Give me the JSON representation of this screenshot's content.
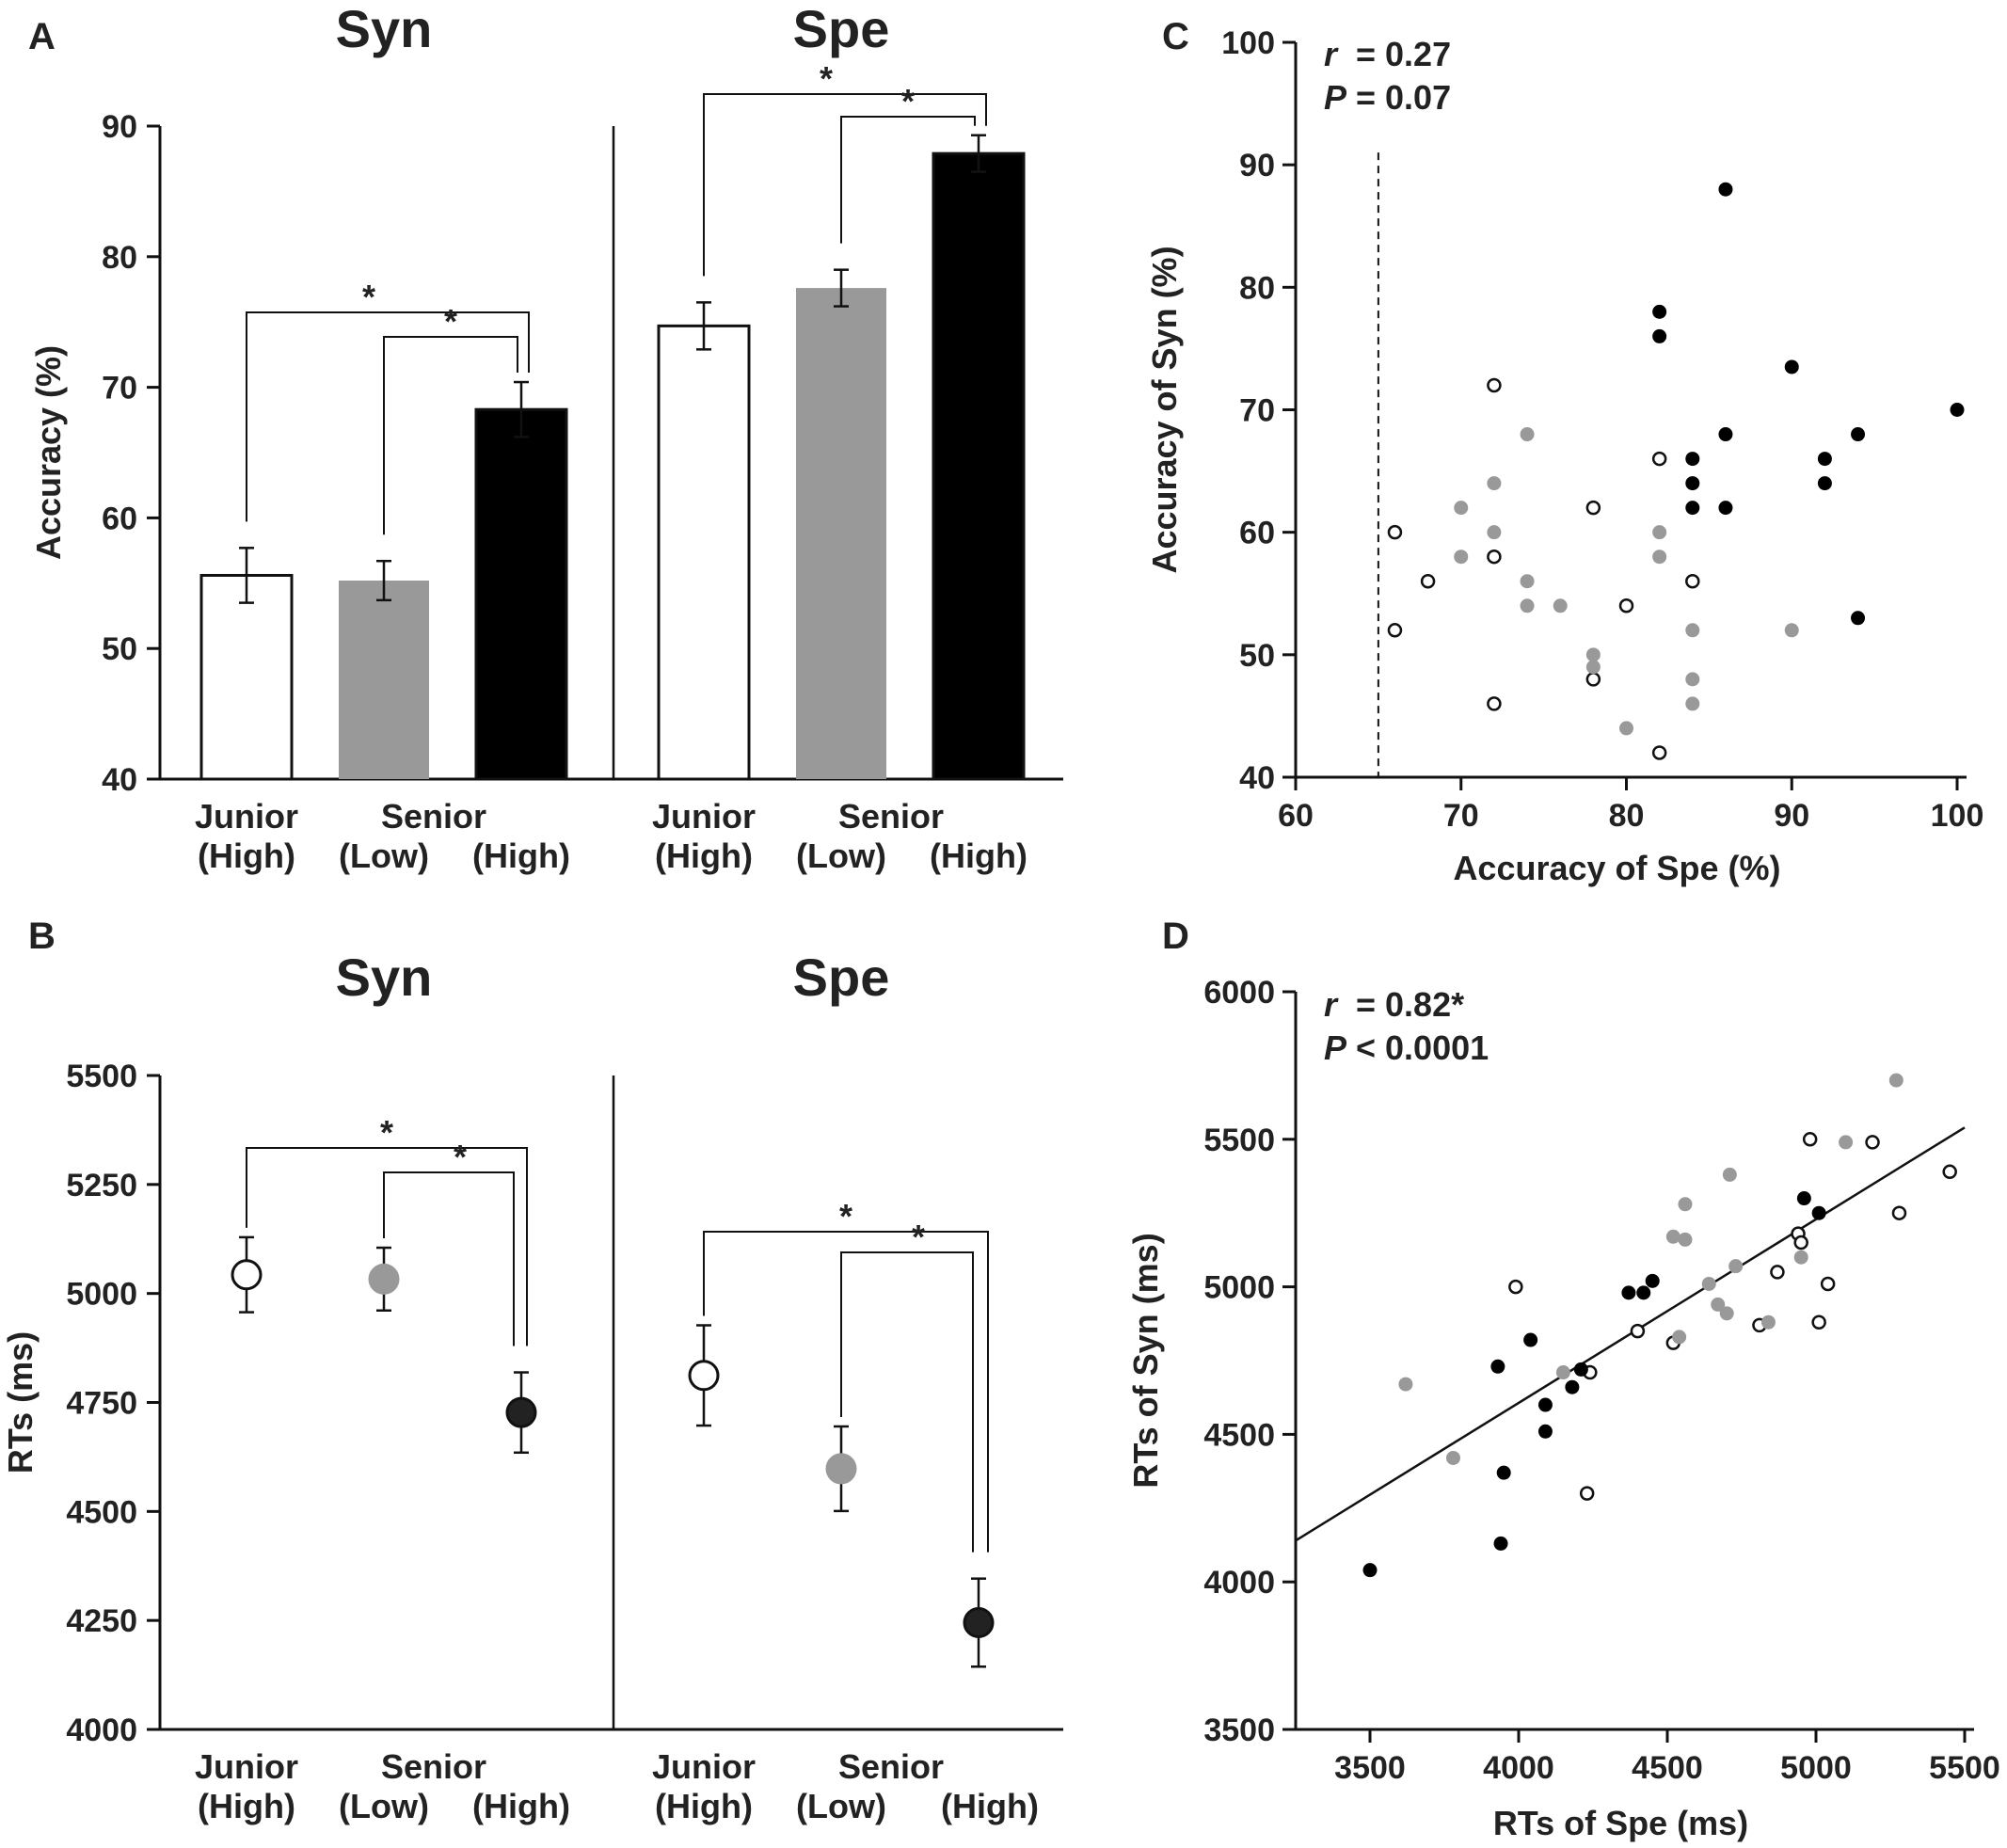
{
  "colors": {
    "junior_high": "#ffffff",
    "senior_low": "#999999",
    "senior_high": "#000000",
    "outline": "#111111"
  },
  "panels": {
    "A": "A",
    "B": "B",
    "C": "C",
    "D": "D"
  },
  "chart_data": [
    {
      "panel": "A",
      "type": "bar",
      "groups": [
        "Syn",
        "Spe"
      ],
      "ylabel": "Accuracy (%)",
      "ylim": [
        40,
        90
      ],
      "yticks": [
        40,
        50,
        60,
        70,
        80,
        90
      ],
      "category_labels": [
        [
          "Junior",
          "(High)"
        ],
        [
          "Senior",
          ""
        ],
        [
          "(Low)",
          "(High)"
        ]
      ],
      "series": [
        {
          "name": "Junior (High)",
          "Syn": 55.6,
          "Spe": 74.7,
          "err_Syn": 2.1,
          "err_Spe": 1.8
        },
        {
          "name": "Senior (Low)",
          "Syn": 55.2,
          "Spe": 77.6,
          "err_Syn": 1.5,
          "err_Spe": 1.4
        },
        {
          "name": "Senior (High)",
          "Syn": 68.3,
          "Spe": 87.9,
          "err_Syn": 2.1,
          "err_Spe": 1.4
        }
      ],
      "significance": [
        {
          "group": "Syn",
          "from": "Junior (High)",
          "to": "Senior (High)",
          "label": "*"
        },
        {
          "group": "Syn",
          "from": "Senior (Low)",
          "to": "Senior (High)",
          "label": "*"
        },
        {
          "group": "Spe",
          "from": "Junior (High)",
          "to": "Senior (High)",
          "label": "*"
        },
        {
          "group": "Spe",
          "from": "Senior (Low)",
          "to": "Senior (High)",
          "label": "*"
        }
      ]
    },
    {
      "panel": "B",
      "type": "scatter",
      "subtype": "point-with-error",
      "groups": [
        "Syn",
        "Spe"
      ],
      "ylabel": "RTs (ms)",
      "ylim": [
        4000,
        5500
      ],
      "yticks": [
        4000,
        4250,
        4500,
        4750,
        5000,
        5250,
        5500
      ],
      "series": [
        {
          "name": "Junior (High)",
          "Syn": 5043,
          "Spe": 4812,
          "err_Syn": 86,
          "err_Spe": 115
        },
        {
          "name": "Senior (Low)",
          "Syn": 5033,
          "Spe": 4598,
          "err_Syn": 72,
          "err_Spe": 97
        },
        {
          "name": "Senior (High)",
          "Syn": 4727,
          "Spe": 4245,
          "err_Syn": 92,
          "err_Spe": 101
        }
      ],
      "significance": [
        {
          "group": "Syn",
          "from": "Junior (High)",
          "to": "Senior (High)",
          "label": "*"
        },
        {
          "group": "Syn",
          "from": "Senior (Low)",
          "to": "Senior (High)",
          "label": "*"
        },
        {
          "group": "Spe",
          "from": "Junior (High)",
          "to": "Senior (High)",
          "label": "*"
        },
        {
          "group": "Spe",
          "from": "Senior (Low)",
          "to": "Senior (High)",
          "label": "*"
        }
      ]
    },
    {
      "panel": "C",
      "type": "scatter",
      "xlabel": "Accuracy of Spe (%)",
      "ylabel": "Accuracy of Syn (%)",
      "xlim": [
        60,
        100
      ],
      "ylim": [
        40,
        100
      ],
      "xticks": [
        60,
        70,
        80,
        90,
        100
      ],
      "yticks": [
        40,
        50,
        60,
        70,
        80,
        90,
        100
      ],
      "stats": {
        "r_symbol": "r",
        "r_value": "= 0.27",
        "p_symbol": "P",
        "p_value": "= 0.07"
      },
      "reference_line_x": 65,
      "series": [
        {
          "name": "Junior (High)",
          "points": [
            [
              66,
              60
            ],
            [
              66,
              52
            ],
            [
              68,
              56
            ],
            [
              72,
              72
            ],
            [
              72,
              58
            ],
            [
              72,
              46
            ],
            [
              78,
              62
            ],
            [
              78,
              48
            ],
            [
              80,
              54
            ],
            [
              82,
              66
            ],
            [
              82,
              42
            ],
            [
              84,
              56
            ]
          ]
        },
        {
          "name": "Senior (Low)",
          "points": [
            [
              70,
              62
            ],
            [
              70,
              58
            ],
            [
              72,
              64
            ],
            [
              72,
              60
            ],
            [
              74,
              68
            ],
            [
              74,
              56
            ],
            [
              74,
              54
            ],
            [
              76,
              54
            ],
            [
              78,
              50
            ],
            [
              78,
              49
            ],
            [
              80,
              44
            ],
            [
              82,
              60
            ],
            [
              82,
              58
            ],
            [
              84,
              52
            ],
            [
              84,
              48
            ],
            [
              84,
              46
            ],
            [
              90,
              52
            ]
          ]
        },
        {
          "name": "Senior (High)",
          "points": [
            [
              82,
              78
            ],
            [
              82,
              76
            ],
            [
              84,
              66
            ],
            [
              84,
              64
            ],
            [
              84,
              62
            ],
            [
              86,
              88
            ],
            [
              86,
              68
            ],
            [
              86,
              62
            ],
            [
              90,
              73.5
            ],
            [
              92,
              66
            ],
            [
              92,
              64
            ],
            [
              94,
              68
            ],
            [
              94,
              53
            ],
            [
              100,
              70
            ]
          ]
        }
      ]
    },
    {
      "panel": "D",
      "type": "scatter",
      "xlabel": "RTs of Spe (ms)",
      "ylabel": "RTs of Syn (ms)",
      "xlim": [
        3250,
        5500
      ],
      "ylim": [
        3500,
        6000
      ],
      "xticks": [
        3500,
        4000,
        4500,
        5000,
        5500
      ],
      "yticks": [
        3500,
        4000,
        4500,
        5000,
        5500,
        6000
      ],
      "stats": {
        "r_symbol": "r",
        "r_value": "= 0.82*",
        "p_symbol": "P",
        "p_value": "< 0.0001"
      },
      "fit_line": [
        [
          3250,
          4140
        ],
        [
          5500,
          5540
        ]
      ],
      "series": [
        {
          "name": "Junior (High)",
          "points": [
            [
              3990,
              5000
            ],
            [
              4230,
              4300
            ],
            [
              4240,
              4710
            ],
            [
              4400,
              4850
            ],
            [
              4520,
              4810
            ],
            [
              4810,
              4870
            ],
            [
              4870,
              5050
            ],
            [
              4940,
              5180
            ],
            [
              4950,
              5150
            ],
            [
              4980,
              5500
            ],
            [
              5010,
              4880
            ],
            [
              5040,
              5010
            ],
            [
              5190,
              5490
            ],
            [
              5280,
              5250
            ],
            [
              5450,
              5390
            ]
          ]
        },
        {
          "name": "Senior (Low)",
          "points": [
            [
              3620,
              4670
            ],
            [
              3780,
              4420
            ],
            [
              4150,
              4710
            ],
            [
              4520,
              5170
            ],
            [
              4540,
              4830
            ],
            [
              4560,
              5280
            ],
            [
              4560,
              5160
            ],
            [
              4640,
              5010
            ],
            [
              4670,
              4940
            ],
            [
              4700,
              4910
            ],
            [
              4710,
              5380
            ],
            [
              4730,
              5070
            ],
            [
              4840,
              4880
            ],
            [
              4950,
              5100
            ],
            [
              5100,
              5490
            ],
            [
              5270,
              5700
            ]
          ]
        },
        {
          "name": "Senior (High)",
          "points": [
            [
              3500,
              4040
            ],
            [
              3930,
              4730
            ],
            [
              3940,
              4130
            ],
            [
              3950,
              4370
            ],
            [
              4040,
              4820
            ],
            [
              4090,
              4600
            ],
            [
              4090,
              4510
            ],
            [
              4180,
              4660
            ],
            [
              4210,
              4720
            ],
            [
              4370,
              4980
            ],
            [
              4420,
              4980
            ],
            [
              4450,
              5020
            ],
            [
              4960,
              5300
            ],
            [
              5010,
              5250
            ]
          ]
        }
      ]
    }
  ]
}
